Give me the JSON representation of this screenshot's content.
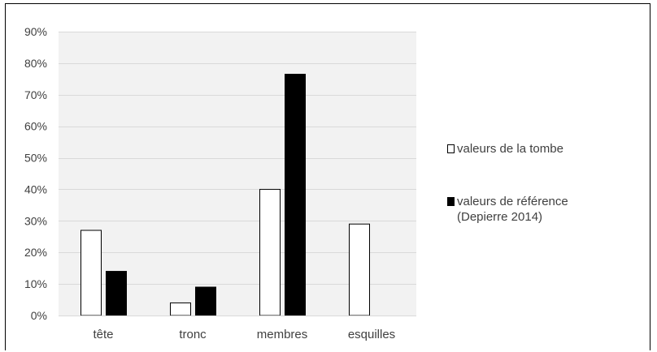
{
  "chart_data": {
    "type": "bar",
    "categories": [
      "tête",
      "tronc",
      "membres",
      "esquilles"
    ],
    "series": [
      {
        "name": "valeurs de la tombe",
        "values": [
          27,
          4,
          40,
          29
        ],
        "fill": "#ffffff",
        "stroke": "#000000"
      },
      {
        "name": "valeurs de référence (Depierre 2014)",
        "values": [
          14,
          9,
          76.5,
          0
        ],
        "fill": "#000000",
        "stroke": "#000000"
      }
    ],
    "yticks": [
      "0%",
      "10%",
      "20%",
      "30%",
      "40%",
      "50%",
      "60%",
      "70%",
      "80%",
      "90%"
    ],
    "ylim": [
      0,
      90
    ],
    "grid": true,
    "legend_position": "right",
    "plot_background": "#f2f2f2",
    "gridline_color": "#d9d9d9"
  }
}
